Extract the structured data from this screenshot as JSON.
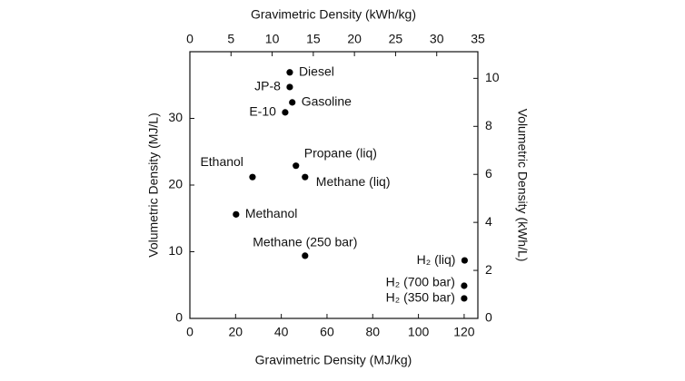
{
  "chart_data": {
    "type": "scatter",
    "xlabel": "Gravimetric Density (MJ/kg)",
    "x2label": "Gravimetric Density (kWh/kg)",
    "ylabel": "Volumetric Density (MJ/L)",
    "y2label": "Volumetric Density (kWh/L)",
    "x": [
      43.7,
      43.7,
      44.8,
      41.7,
      46.4,
      50.4,
      27.4,
      20.2,
      50.4,
      120.2,
      120,
      120
    ],
    "y": [
      36.9,
      34.7,
      32.4,
      30.9,
      22.9,
      21.2,
      21.2,
      15.6,
      9.4,
      8.7,
      4.9,
      3.0
    ],
    "point_labels": [
      "Diesel",
      "JP-8",
      "Gasoline",
      "E-10",
      "Propane (liq)",
      "Methane (liq)",
      "Ethanol",
      "Methanol",
      "Methane (250 bar)",
      "H₂ (liq)",
      "H₂ (700 bar)",
      "H₂ (350 bar)"
    ],
    "color": "#000000",
    "xlim": [
      0,
      126
    ],
    "xticks": [
      0,
      20,
      40,
      60,
      80,
      100,
      120
    ],
    "x2lim": [
      0,
      35
    ],
    "x2ticks": [
      0,
      5,
      10,
      15,
      20,
      25,
      30,
      35
    ],
    "ylim": [
      0,
      40
    ],
    "yticks": [
      0,
      10,
      20,
      30
    ],
    "y2lim": [
      0,
      11.11
    ],
    "y2ticks": [
      0,
      2,
      4,
      6,
      8,
      10
    ]
  }
}
